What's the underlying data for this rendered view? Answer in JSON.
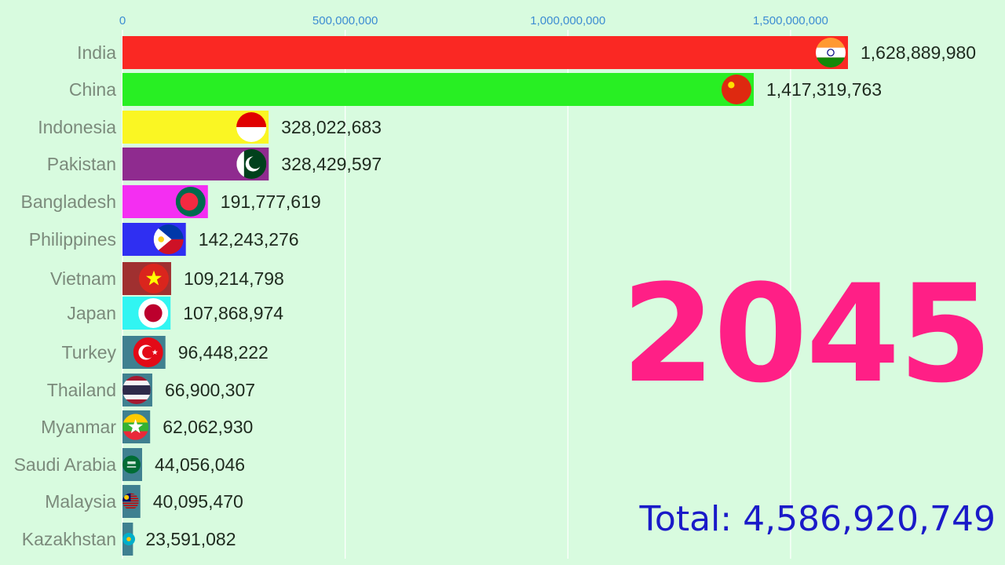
{
  "chart_data": {
    "type": "bar",
    "orientation": "horizontal",
    "x_axis": {
      "position": "top",
      "min": 0,
      "max": 1628889980,
      "ticks": [
        0,
        500000000,
        1000000000,
        1500000000
      ],
      "tick_labels": [
        "0",
        "500,000,000",
        "1,000,000,000",
        "1,500,000,000"
      ]
    },
    "bars": [
      {
        "country": "India",
        "value": 1628889980,
        "value_label": "1,628,889,980",
        "color": "#fa2823",
        "flag": "india-flag"
      },
      {
        "country": "China",
        "value": 1417319763,
        "value_label": "1,417,319,763",
        "color": "#28ef23",
        "flag": "china-flag"
      },
      {
        "country": "Indonesia",
        "value": 328022683,
        "value_label": "328,022,683",
        "color": "#faf623",
        "flag": "indonesia-flag"
      },
      {
        "country": "Pakistan",
        "value": 328429597,
        "value_label": "328,429,597",
        "color": "#8f2b8f",
        "flag": "pakistan-flag"
      },
      {
        "country": "Bangladesh",
        "value": 191777619,
        "value_label": "191,777,619",
        "color": "#f42ef2",
        "flag": "bangladesh-flag"
      },
      {
        "country": "Philippines",
        "value": 142243276,
        "value_label": "142,243,276",
        "color": "#2f2ff2",
        "flag": "philippines-flag"
      },
      {
        "country": "Vietnam",
        "value": 109214798,
        "value_label": "109,214,798",
        "color": "#a03030",
        "flag": "vietnam-flag"
      },
      {
        "country": "Japan",
        "value": 107868974,
        "value_label": "107,868,974",
        "color": "#31f5f2",
        "flag": "japan-flag"
      },
      {
        "country": "Turkey",
        "value": 96448222,
        "value_label": "96,448,222",
        "color": "#3f8090",
        "flag": "turkey-flag"
      },
      {
        "country": "Thailand",
        "value": 66900307,
        "value_label": "66,900,307",
        "color": "#3f8090",
        "flag": "thailand-flag"
      },
      {
        "country": "Myanmar",
        "value": 62062930,
        "value_label": "62,062,930",
        "color": "#3f8090",
        "flag": "myanmar-flag"
      },
      {
        "country": "Saudi Arabia",
        "value": 44056046,
        "value_label": "44,056,046",
        "color": "#3f8090",
        "flag": "saudi-arabia-flag"
      },
      {
        "country": "Malaysia",
        "value": 40095470,
        "value_label": "40,095,470",
        "color": "#3f8090",
        "flag": "malaysia-flag"
      },
      {
        "country": "Kazakhstan",
        "value": 23591082,
        "value_label": "23,591,082",
        "color": "#3f8090",
        "flag": "kazakhstan-flag"
      }
    ],
    "year_label": "2045",
    "total_label": "Total: 4,586,920,749",
    "colors": {
      "background": "#d8fbdf",
      "tick_text": "#3c8cd2",
      "country_text": "#7b8a7b",
      "value_text": "#1e2a1e",
      "year": "#ff1f86",
      "total": "#1a1ac8"
    }
  }
}
